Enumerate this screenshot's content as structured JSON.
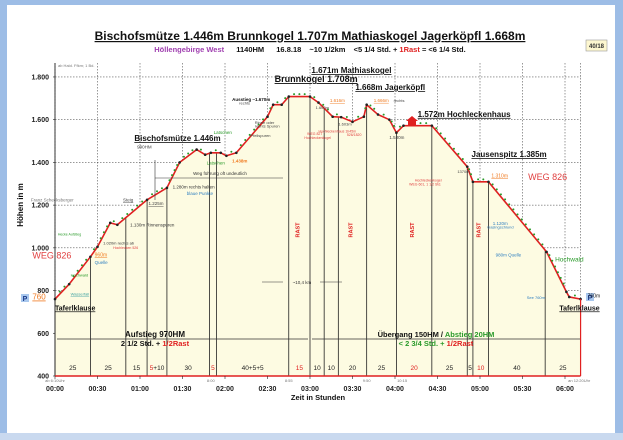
{
  "chart_data": {
    "type": "area",
    "title": "Bischofsmütze 1.446m Brunnkogel 1.707m Mathiaskogel  Jagerköpfl 1.668m",
    "subtitle": {
      "region": "Höllengebirge West",
      "ascent": "1140HM",
      "date": "16.8.18",
      "distance": "~10 1/2km",
      "time_a": "<5 1/4 Std. + ",
      "rest": "1Rast",
      "time_b": " = <6 1/4  Std."
    },
    "badge": "40/18",
    "corner_note": "ab Hald. Ffkm; 1 Bd.",
    "xlabel": "Zeit in Stunden",
    "ylabel": "Höhen in m",
    "ylim": [
      400,
      1850
    ],
    "xlim": [
      "0:00",
      "6:11"
    ],
    "grid": true,
    "x_ticks": [
      "00:00",
      "00:30",
      "01:00",
      "01:30",
      "02:00",
      "02:30",
      "03:00",
      "03:30",
      "04:00",
      "04:30",
      "05:00",
      "05:30",
      "06:00"
    ],
    "y_ticks": [
      "400",
      "600",
      "800",
      "1.000",
      "1.200",
      "1.400",
      "1.600",
      "1.800"
    ],
    "y_tick_values": [
      400,
      600,
      800,
      1000,
      1200,
      1400,
      1600,
      1800
    ],
    "colors": {
      "profile": "#e02020",
      "fill": "#fdfbe2",
      "rest": "#e02020",
      "grid": "#333333",
      "orange": "#f07a20",
      "green": "#2a9a2a",
      "blue": "#2f7fc0"
    },
    "profile": [
      [
        "0:00",
        760
      ],
      [
        "0:10",
        830
      ],
      [
        "0:25",
        958
      ],
      [
        "0:30",
        1005
      ],
      [
        "0:39",
        1117
      ],
      [
        "0:44",
        1108
      ],
      [
        "1:05",
        1225
      ],
      [
        "1:19",
        1281
      ],
      [
        "1:28",
        1400
      ],
      [
        "1:40",
        1460
      ],
      [
        "1:46",
        1436
      ],
      [
        "1:50",
        1445
      ],
      [
        "1:57",
        1445
      ],
      [
        "2:01",
        1431
      ],
      [
        "2:08",
        1445
      ],
      [
        "2:30",
        1614
      ],
      [
        "2:34",
        1670
      ],
      [
        "2:40",
        1670
      ],
      [
        "2:45",
        1708
      ],
      [
        "3:00",
        1708
      ],
      [
        "3:06",
        1680
      ],
      [
        "3:16",
        1614
      ],
      [
        "3:22",
        1612
      ],
      [
        "3:30",
        1590
      ],
      [
        "3:38",
        1614
      ],
      [
        "3:40",
        1670
      ],
      [
        "3:48",
        1624
      ],
      [
        "3:56",
        1600
      ],
      [
        "4:01",
        1539
      ],
      [
        "4:06",
        1572
      ],
      [
        "4:26",
        1572
      ],
      [
        "4:51",
        1380
      ],
      [
        "4:55",
        1309
      ],
      [
        "5:06",
        1309
      ],
      [
        "5:47",
        981
      ],
      [
        "6:01",
        794
      ],
      [
        "6:03",
        770
      ],
      [
        "6:11",
        760
      ]
    ],
    "segment_bounds": [
      "0:00",
      "0:25",
      "0:50",
      "1:05",
      "1:19",
      "1:49",
      "1:54",
      "2:45",
      "3:00",
      "3:10",
      "3:20",
      "3:40",
      "4:01",
      "4:26",
      "4:51",
      "4:55",
      "5:06",
      "5:46",
      "6:11"
    ],
    "segment_minutes": [
      {
        "label": "25",
        "red": ""
      },
      {
        "label": "25",
        "red": ""
      },
      {
        "label": "15",
        "red": ""
      },
      {
        "label": "+10",
        "red": "5"
      },
      {
        "label": "30",
        "red": ""
      },
      {
        "label": "",
        "red": "5"
      },
      {
        "label": "40+5+5",
        "red": ""
      },
      {
        "label": "",
        "red": "15"
      },
      {
        "label": "10",
        "red": ""
      },
      {
        "label": "10",
        "red": ""
      },
      {
        "label": "20",
        "red": ""
      },
      {
        "label": "25",
        "red": ""
      },
      {
        "label": "",
        "red": "20"
      },
      {
        "label": "25",
        "red": ""
      },
      {
        "label": "5",
        "red": ""
      },
      {
        "label": "",
        "red": "10"
      },
      {
        "label": "40",
        "red": ""
      },
      {
        "label": "25",
        "red": ""
      }
    ],
    "rest_label": "RAST",
    "rest_segments": [
      7,
      10,
      12,
      15
    ],
    "clock_times": [
      {
        "t": "0:00",
        "text": "ab 6:10Uhr"
      },
      {
        "t": "1:50",
        "text": "8:00"
      },
      {
        "t": "2:45",
        "text": "8:55"
      },
      {
        "t": "3:40",
        "text": "9:50"
      },
      {
        "t": "4:05",
        "text": "10:15"
      },
      {
        "t": "6:10",
        "text": "an 12:20Uhr"
      }
    ],
    "summary": {
      "ascent_title": "Aufstieg  970HM",
      "ascent_time": "2 1/2 Std. + ",
      "ascent_rest": "1/2Rast",
      "traverse_title_a": "Übergang 150HM / ",
      "traverse_title_b": "Abstieg 20HM",
      "traverse_time": "< 2 3/4 Std. + ",
      "traverse_rest": "1/2Rast",
      "distance": "~10,4 km",
      "route_note": "Weg führung oft undeutlich"
    },
    "annotations": [
      {
        "text": "Brunnkogel 1.708m",
        "t": "2:35",
        "e": 1776,
        "color": "#111",
        "size": 9,
        "bold": true,
        "u": true
      },
      {
        "text": "1.671m Mathiaskogel",
        "t": "3:01",
        "e": 1818,
        "color": "#111",
        "size": 8,
        "bold": true,
        "u": true
      },
      {
        "text": "1.668m Jagerköpfl",
        "t": "3:32",
        "e": 1739,
        "color": "#111",
        "size": 8,
        "bold": true,
        "u": true
      },
      {
        "text": "1.572m Hochleckenhaus",
        "t": "4:16",
        "e": 1613,
        "color": "#111",
        "size": 8,
        "bold": true,
        "u": true
      },
      {
        "text": "Jausenspitz 1.385m",
        "t": "4:54",
        "e": 1425,
        "color": "#111",
        "size": 8,
        "bold": true,
        "u": true
      },
      {
        "text": "Bischofsmütze 1.446m",
        "t": "0:56",
        "e": 1500,
        "color": "#111",
        "size": 8,
        "bold": true,
        "u": true
      },
      {
        "text": "990HM",
        "t": "0:58",
        "e": 1465,
        "color": "#444",
        "size": 4.5
      },
      {
        "text": "WEG 826",
        "t": "5:34",
        "e": 1318,
        "color": "#e04040",
        "size": 9
      },
      {
        "text": "WEG 826",
        "t": "-0:16",
        "e": 949,
        "color": "#e04040",
        "size": 9
      },
      {
        "text": "Taferlklause",
        "t": "0:00",
        "e": 707,
        "color": "#111",
        "size": 7,
        "bold": true,
        "u": true
      },
      {
        "text": "Taferlklause",
        "t": "5:56",
        "e": 707,
        "color": "#111",
        "size": 7,
        "bold": true,
        "u": true
      },
      {
        "text": "760",
        "t": "-0:16",
        "e": 758,
        "color": "#f07a20",
        "size": 8,
        "u": true
      },
      {
        "text": "760m",
        "t": "6:16",
        "e": 768,
        "color": "#111",
        "size": 5
      },
      {
        "text": "Ausstieg ~1.670m",
        "t": "2:05",
        "e": 1688,
        "color": "#111",
        "size": 4.5,
        "bold": true
      },
      {
        "text": "rechts",
        "t": "2:10",
        "e": 1670,
        "color": "#444",
        "size": 4
      },
      {
        "text": "Rinne oder",
        "t": "2:21",
        "e": 1580,
        "color": "#444",
        "size": 4
      },
      {
        "text": "rechts Spuren",
        "t": "2:21",
        "e": 1563,
        "color": "#444",
        "size": 4
      },
      {
        "text": "Pfeilspuren",
        "t": "2:18",
        "e": 1520,
        "color": "#444",
        "size": 4
      },
      {
        "text": "Latschen",
        "t": "1:52",
        "e": 1532,
        "color": "#2a9a2a",
        "size": 4.5
      },
      {
        "text": "Latschen",
        "t": "1:47",
        "e": 1390,
        "color": "#2a9a2a",
        "size": 4.5
      },
      {
        "text": "1.438m",
        "t": "2:05",
        "e": 1400,
        "color": "#f07a20",
        "size": 4.5,
        "bold": true
      },
      {
        "text": "1.280m rechts halten",
        "t": "1:23",
        "e": 1278,
        "color": "#333",
        "size": 4.5
      },
      {
        "text": "blaue Punkte",
        "t": "1:33",
        "e": 1248,
        "color": "#2f7fc0",
        "size": 4.5
      },
      {
        "text": "1.225m",
        "t": "1:06",
        "e": 1200,
        "color": "#444",
        "size": 4.5,
        "u": true
      },
      {
        "text": "Franz Schecksberger",
        "t": "-0:17",
        "e": 1218,
        "color": "#777",
        "size": 4.5
      },
      {
        "text": "Steig",
        "t": "0:48",
        "e": 1218,
        "color": "#444",
        "size": 4.5,
        "u": true
      },
      {
        "text": "1.130m Rinnenspuren",
        "t": "0:53",
        "e": 1100,
        "color": "#333",
        "size": 4.5
      },
      {
        "text": "Hecke Aufstieg",
        "t": "0:02",
        "e": 1058,
        "color": "#2a9a2a",
        "size": 3.5
      },
      {
        "text": "1.020m rechts ab",
        "t": "0:34",
        "e": 1015,
        "color": "#333",
        "size": 4
      },
      {
        "text": "Hochlecken 526",
        "t": "0:41",
        "e": 995,
        "color": "#e04040",
        "size": 3.5
      },
      {
        "text": "960m",
        "t": "0:28",
        "e": 960,
        "color": "#f07a20",
        "size": 5,
        "u": true
      },
      {
        "text": "Quelle",
        "t": "0:28",
        "e": 925,
        "color": "#2f7fc0",
        "size": 4.5
      },
      {
        "text": "Hochwald",
        "t": "0:11",
        "e": 865,
        "color": "#2a9a2a",
        "size": 4
      },
      {
        "text": "Wasserfall",
        "t": "0:11",
        "e": 778,
        "color": "#3aa0a0",
        "size": 4,
        "u": true
      },
      {
        "text": "1.660m",
        "t": "3:04",
        "e": 1650,
        "color": "#444",
        "size": 4
      },
      {
        "text": "1.616m",
        "t": "3:14",
        "e": 1682,
        "color": "#f07a20",
        "size": 4.5,
        "u": true
      },
      {
        "text": "1.603m",
        "t": "3:20",
        "e": 1572,
        "color": "#444",
        "size": 4
      },
      {
        "text": "Hochleckenhaus  1h45m",
        "t": "3:06",
        "e": 1541,
        "color": "#e04040",
        "size": 3.5
      },
      {
        "text": "526/1820",
        "t": "3:26",
        "e": 1523,
        "color": "#e04040",
        "size": 3.5
      },
      {
        "text": "WEG 827",
        "t": "2:58",
        "e": 1528,
        "color": "#e04040",
        "size": 3.5
      },
      {
        "text": "Hochleckenkogel",
        "t": "2:56",
        "e": 1510,
        "color": "#e04040",
        "size": 3.5
      },
      {
        "text": "1.666m",
        "t": "3:45",
        "e": 1683,
        "color": "#f07a20",
        "size": 4.5,
        "u": true
      },
      {
        "text": "rechts",
        "t": "3:59",
        "e": 1683,
        "color": "#444",
        "size": 4
      },
      {
        "text": "1.530m",
        "t": "3:56",
        "e": 1510,
        "color": "#444",
        "size": 4.5
      },
      {
        "text": "1370m",
        "t": "4:44",
        "e": 1350,
        "color": "#444",
        "size": 4
      },
      {
        "text": "1.310m",
        "t": "5:08",
        "e": 1330,
        "color": "#f07a20",
        "size": 5,
        "u": true
      },
      {
        "text": "Hochleckenkogel",
        "t": "4:14",
        "e": 1310,
        "color": "#e04040",
        "size": 3.5
      },
      {
        "text": "WEG 601, 1 1/2 Std.",
        "t": "4:10",
        "e": 1293,
        "color": "#e04040",
        "size": 3.5
      },
      {
        "text": "1.120m",
        "t": "5:09",
        "e": 1108,
        "color": "#2f7fc0",
        "size": 4.5
      },
      {
        "text": "Gasingschlund",
        "t": "5:05",
        "e": 1090,
        "color": "#2f7fc0",
        "size": 4
      },
      {
        "text": "980m Quelle",
        "t": "5:11",
        "e": 960,
        "color": "#2f7fc0",
        "size": 4.5
      },
      {
        "text": "Hochwald",
        "t": "5:53",
        "e": 935,
        "color": "#2a9a2a",
        "size": 6.5
      },
      {
        "text": "See 760m",
        "t": "5:33",
        "e": 760,
        "color": "#2f7fc0",
        "size": 4
      }
    ]
  }
}
